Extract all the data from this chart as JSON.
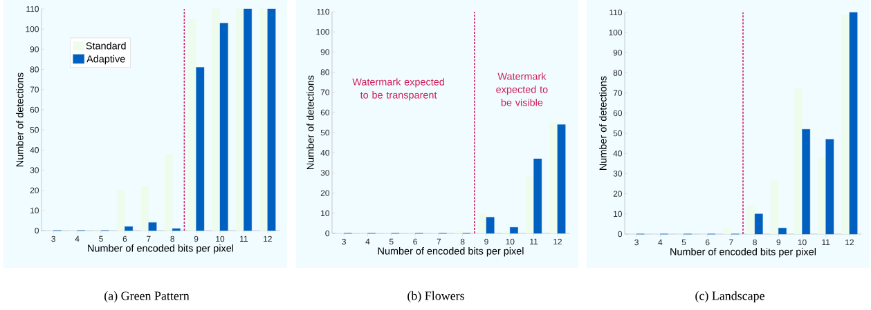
{
  "chart_data": [
    {
      "type": "bar",
      "title": "(a) Green Pattern",
      "xlabel": "Number of encoded bits per pixel",
      "ylabel": "Number of detections",
      "x": [
        3,
        4,
        5,
        6,
        7,
        8,
        9,
        10,
        11,
        12
      ],
      "xlim": [
        2.5,
        12.5
      ],
      "xticks": [
        3,
        4,
        5,
        6,
        7,
        8,
        9,
        10,
        11,
        12
      ],
      "ylim": [
        0,
        110
      ],
      "yticks": [
        0,
        10,
        20,
        30,
        40,
        50,
        60,
        70,
        80,
        90,
        100,
        110
      ],
      "legend": "top left",
      "series": [
        {
          "name": "Standard",
          "color": "#eefcee",
          "values": [
            0,
            0,
            0,
            20,
            22,
            38,
            105,
            110,
            110,
            110
          ]
        },
        {
          "name": "Adaptive",
          "color": "#0060c0",
          "values": [
            0,
            0,
            0,
            2,
            4,
            1,
            81,
            103,
            110,
            110
          ]
        }
      ],
      "ref_lines": [
        {
          "axis": "x",
          "value": 8.5,
          "color": "#d0205a",
          "line_style": "dashed"
        }
      ]
    },
    {
      "type": "bar",
      "title": "(b) Flowers",
      "xlabel": "Number of encoded bits per pixel",
      "ylabel": "Number of detections",
      "x": [
        3,
        4,
        5,
        6,
        7,
        8,
        9,
        10,
        11,
        12
      ],
      "xlim": [
        2.5,
        12.5
      ],
      "xticks": [
        3,
        4,
        5,
        6,
        7,
        8,
        9,
        10,
        11,
        12
      ],
      "ylim": [
        0,
        110
      ],
      "yticks": [
        0,
        10,
        20,
        30,
        40,
        50,
        60,
        70,
        80,
        90,
        100,
        110
      ],
      "series": [
        {
          "color": "#eefcee",
          "values": [
            0,
            0,
            0,
            0,
            0,
            1,
            10,
            1,
            28,
            55
          ]
        },
        {
          "color": "#0060c0",
          "values": [
            0,
            0,
            0,
            0,
            0,
            0,
            8,
            3,
            37,
            54
          ]
        }
      ],
      "ref_lines": [
        {
          "axis": "x",
          "value": 8.5,
          "color": "#d0205a",
          "line_style": "dashed"
        }
      ],
      "annotations": [
        "Watermark expected to be transparent",
        "Watermark expected to be visible"
      ]
    },
    {
      "type": "bar",
      "title": "(c) Landscape",
      "xlabel": "Number of encoded bits per pixel",
      "ylabel": "Number of detections",
      "x": [
        3,
        4,
        5,
        6,
        7,
        8,
        9,
        10,
        11,
        12
      ],
      "xlim": [
        2.5,
        12.5
      ],
      "xticks": [
        3,
        4,
        5,
        6,
        7,
        8,
        9,
        10,
        11,
        12
      ],
      "ylim": [
        0,
        110
      ],
      "yticks": [
        0,
        10,
        20,
        30,
        40,
        50,
        60,
        70,
        80,
        90,
        100,
        110
      ],
      "series": [
        {
          "color": "#eefcee",
          "values": [
            0,
            0,
            0,
            0,
            3,
            14,
            27,
            72,
            38,
            109
          ]
        },
        {
          "color": "#0060c0",
          "values": [
            0,
            0,
            0,
            0,
            0,
            10,
            3,
            52,
            47,
            110
          ]
        }
      ],
      "ref_lines": [
        {
          "axis": "x",
          "value": 7.5,
          "color": "#d0205a",
          "line_style": "dashed"
        }
      ]
    }
  ]
}
